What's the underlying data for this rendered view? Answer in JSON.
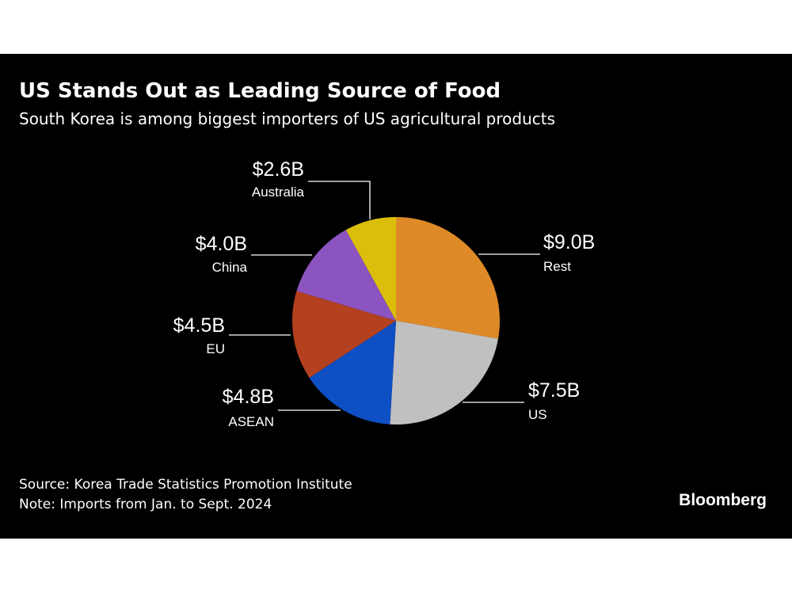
{
  "header": {
    "title": "US Stands Out as Leading Source of Food",
    "subtitle": "South Korea is among biggest importers of US agricultural products"
  },
  "footer": {
    "source": "Source: Korea Trade Statistics Promotion Institute",
    "note": "Note: Imports from Jan. to Sept. 2024",
    "brand": "Bloomberg"
  },
  "chart_data": {
    "type": "pie",
    "unit": "USD billions",
    "slices": [
      {
        "label": "Rest",
        "value": 9.0,
        "value_label": "$9.0B",
        "color": "#de8a28"
      },
      {
        "label": "US",
        "value": 7.5,
        "value_label": "$7.5B",
        "color": "#c0c0c0"
      },
      {
        "label": "ASEAN",
        "value": 4.8,
        "value_label": "$4.8B",
        "color": "#0f4fc4"
      },
      {
        "label": "EU",
        "value": 4.5,
        "value_label": "$4.5B",
        "color": "#b3401f"
      },
      {
        "label": "China",
        "value": 4.0,
        "value_label": "$4.0B",
        "color": "#8c54c0"
      },
      {
        "label": "Australia",
        "value": 2.6,
        "value_label": "$2.6B",
        "color": "#dbbe09"
      }
    ]
  }
}
